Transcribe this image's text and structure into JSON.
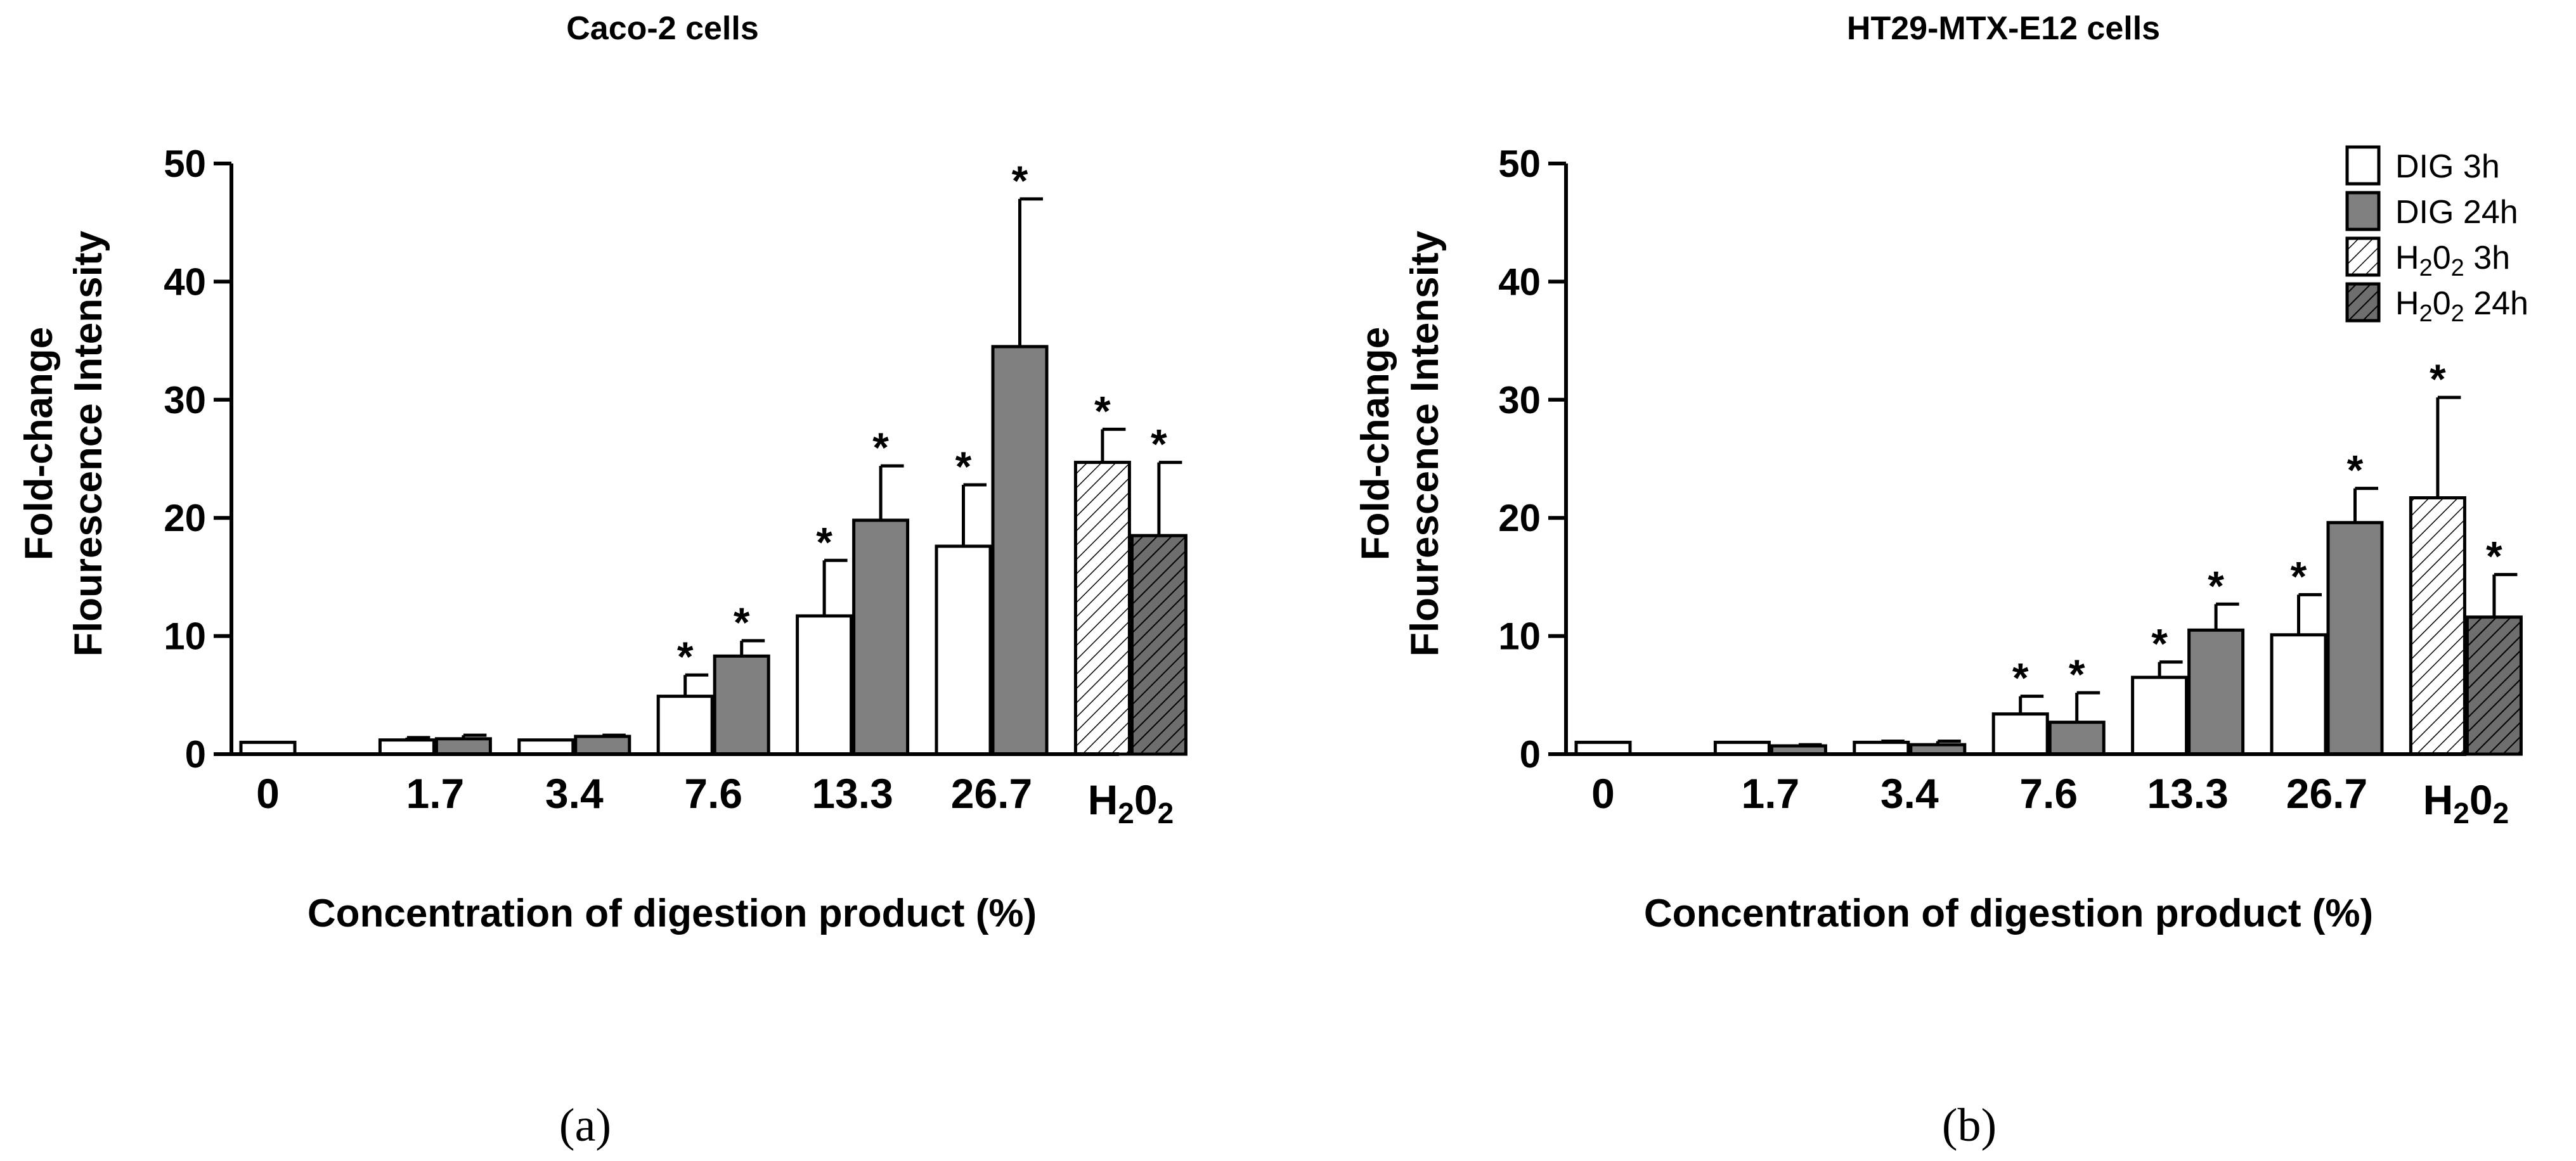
{
  "colors": {
    "dig3h": "#ffffff",
    "dig24h": "#808080",
    "h2o2_3h": "#ffffff",
    "h2o2_24h": "#6e6e6e",
    "ink": "#000000"
  },
  "legend": [
    {
      "key": "dig3h",
      "label": "DIG 3h",
      "pattern": "none"
    },
    {
      "key": "dig24h",
      "label": "DIG 24h",
      "pattern": "none"
    },
    {
      "key": "h2o2_3h",
      "label": "H₂0₂ 3h",
      "pattern": "hatch"
    },
    {
      "key": "h2o2_24h",
      "label": "H₂0₂ 24h",
      "pattern": "hatch"
    }
  ],
  "chart_data": [
    {
      "type": "bar",
      "panel_label": "(a)",
      "title": "Caco-2 cells",
      "ylabel": [
        "Fold-change",
        "Flourescence Intensity"
      ],
      "xlabel": "Concentration of digestion product (%)",
      "ylim": [
        0,
        50
      ],
      "yticks": [
        "0",
        "10",
        "20",
        "30",
        "40",
        "50"
      ],
      "categories": [
        "0",
        "1.7",
        "3.4",
        "7.6",
        "13.3",
        "26.7",
        "H₂0₂"
      ],
      "series": [
        {
          "name": "3h",
          "values": [
            1.0,
            1.2,
            1.2,
            4.9,
            11.7,
            17.6,
            24.7
          ],
          "errors": [
            0.0,
            0.2,
            0.0,
            1.8,
            4.7,
            5.2,
            2.8
          ],
          "significant": [
            false,
            false,
            false,
            true,
            true,
            true,
            true
          ]
        },
        {
          "name": "24h",
          "values": [
            null,
            1.3,
            1.5,
            8.3,
            19.8,
            34.5,
            18.5
          ],
          "errors": [
            null,
            0.3,
            0.1,
            1.3,
            4.6,
            12.5,
            6.2
          ],
          "significant": [
            false,
            false,
            false,
            true,
            true,
            true,
            true
          ]
        }
      ]
    },
    {
      "type": "bar",
      "panel_label": "(b)",
      "title": "HT29-MTX-E12 cells",
      "ylabel": [
        "Fold-change",
        "Flourescence Intensity"
      ],
      "xlabel": "Concentration of digestion product (%)",
      "ylim": [
        0,
        50
      ],
      "yticks": [
        "0",
        "10",
        "20",
        "30",
        "40",
        "50"
      ],
      "categories": [
        "0",
        "1.7",
        "3.4",
        "7.6",
        "13.3",
        "26.7",
        "H₂0₂"
      ],
      "series": [
        {
          "name": "3h",
          "values": [
            1.0,
            1.0,
            1.0,
            3.4,
            6.5,
            10.1,
            21.7
          ],
          "errors": [
            0.0,
            0.0,
            0.1,
            1.5,
            1.3,
            3.4,
            8.5
          ],
          "significant": [
            false,
            false,
            false,
            true,
            true,
            true,
            true
          ]
        },
        {
          "name": "24h",
          "values": [
            null,
            0.7,
            0.8,
            2.7,
            10.5,
            19.6,
            11.6
          ],
          "errors": [
            null,
            0.1,
            0.3,
            2.5,
            2.2,
            2.9,
            3.6
          ],
          "significant": [
            false,
            false,
            false,
            true,
            true,
            true,
            true
          ]
        }
      ]
    }
  ]
}
